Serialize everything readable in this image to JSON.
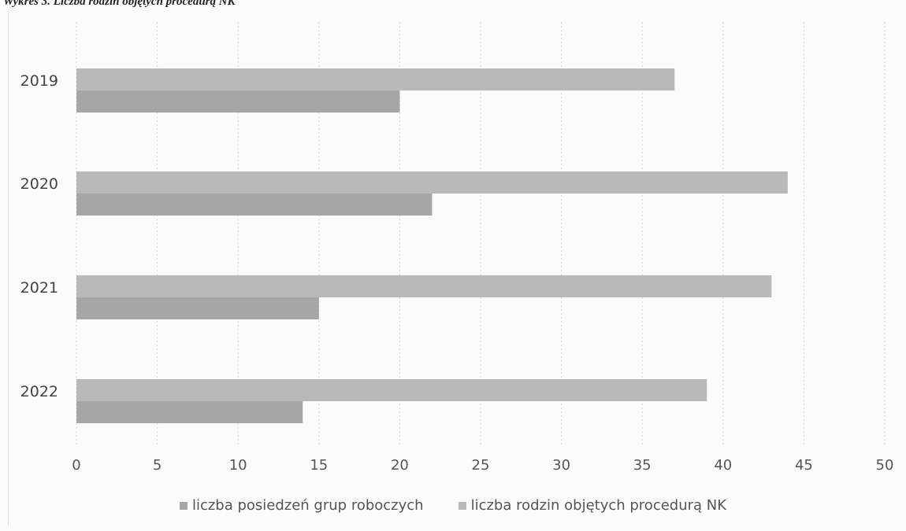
{
  "caption": "Wykres 3. Liczba rodzin objętych procedurą NK",
  "chart_data": {
    "type": "bar",
    "orientation": "horizontal",
    "categories": [
      "2019",
      "2020",
      "2021",
      "2022"
    ],
    "series": [
      {
        "name": "liczba posiedzeń grup roboczych",
        "values": [
          20,
          22,
          15,
          14
        ],
        "color": "#a6a6a6"
      },
      {
        "name": "liczba rodzin objętych procedurą NK",
        "values": [
          37,
          44,
          43,
          39
        ],
        "color": "#b9b9b9"
      }
    ],
    "xlim": [
      0,
      50
    ],
    "xticks": [
      "0",
      "5",
      "10",
      "15",
      "20",
      "25",
      "30",
      "35",
      "40",
      "45",
      "50"
    ],
    "grid": true,
    "legend_position": "bottom"
  }
}
